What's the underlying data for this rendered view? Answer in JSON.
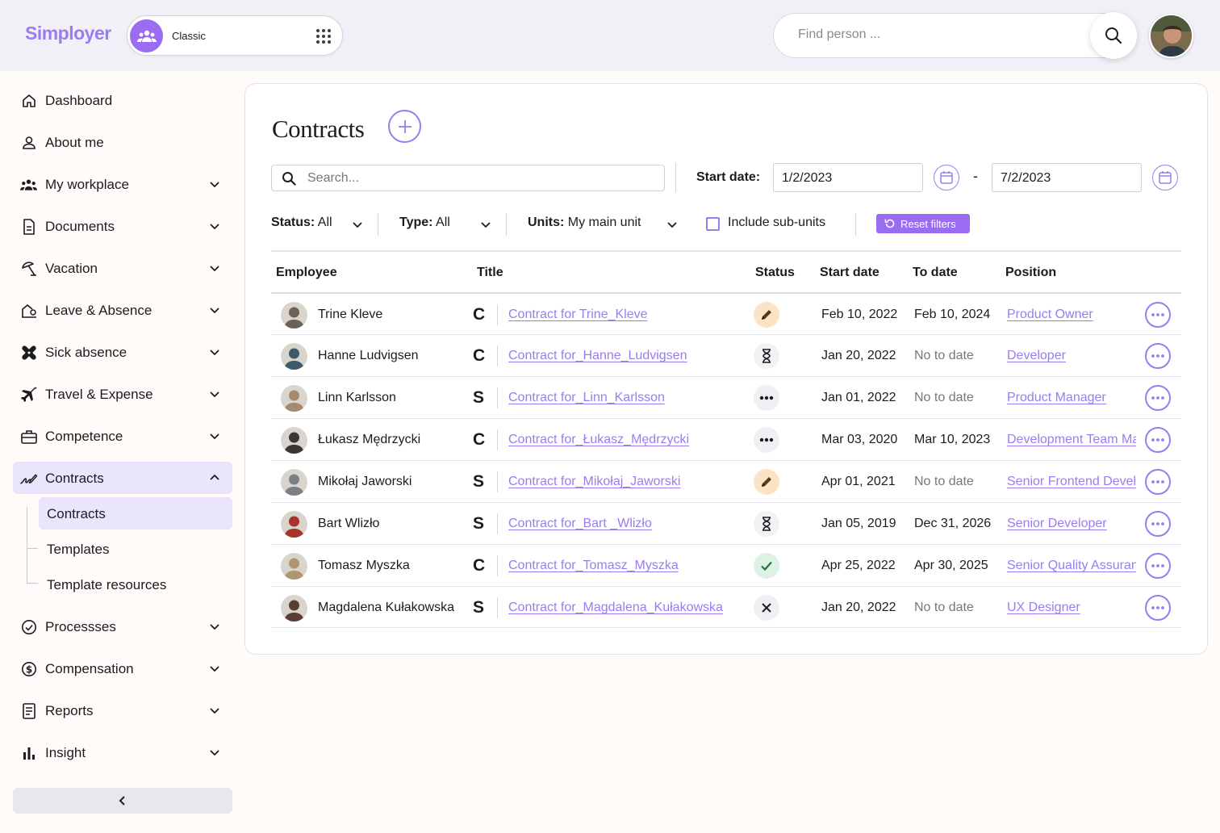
{
  "header": {
    "logo": "Simployer",
    "switcher_label": "Classic",
    "search_placeholder": "Find person ..."
  },
  "sidebar": {
    "items": [
      {
        "label": "Dashboard",
        "icon": "home-icon"
      },
      {
        "label": "About me",
        "icon": "person-icon"
      },
      {
        "label": "My workplace",
        "icon": "group-icon"
      },
      {
        "label": "Documents",
        "icon": "document-icon"
      },
      {
        "label": "Vacation",
        "icon": "beach-umbrella-icon"
      },
      {
        "label": "Leave & Absence",
        "icon": "leave-icon"
      },
      {
        "label": "Sick absence",
        "icon": "bandage-icon"
      },
      {
        "label": "Travel & Expense",
        "icon": "airplane-icon"
      },
      {
        "label": "Competence",
        "icon": "briefcase-icon"
      },
      {
        "label": "Contracts",
        "icon": "signature-icon"
      },
      {
        "label": "Processses",
        "icon": "check-circle-icon"
      },
      {
        "label": "Compensation",
        "icon": "dollar-circle-icon"
      },
      {
        "label": "Reports",
        "icon": "report-icon"
      },
      {
        "label": "Insight",
        "icon": "bar-chart-icon"
      }
    ],
    "contracts_sub": [
      "Contracts",
      "Templates",
      "Template resources"
    ]
  },
  "page": {
    "title": "Contracts",
    "search_placeholder": "Search...",
    "start_date_label": "Start date:",
    "date_from": "1/2/2023",
    "date_separator": "-",
    "date_to": "7/2/2023",
    "filters": {
      "status_label": "Status:",
      "status_value": "All",
      "type_label": "Type:",
      "type_value": "All",
      "units_label": "Units:",
      "units_value": "My main unit",
      "include_sub": "Include sub-units",
      "reset": "Reset filters"
    }
  },
  "table": {
    "columns": [
      "Employee",
      "Title",
      "Status",
      "Start date",
      "To date",
      "Position"
    ],
    "rows": [
      {
        "name": "Trine Kleve",
        "type": "C",
        "title": "Contract for Trine_Kleve",
        "status": "draft",
        "start": "Feb 10, 2022",
        "to": "Feb 10, 2024",
        "position": "Product Owner",
        "avatar_color": "#6b6158"
      },
      {
        "name": "Hanne Ludvigsen",
        "type": "C",
        "title": "Contract for_Hanne_Ludvigsen",
        "status": "pending",
        "start": "Jan 20, 2022",
        "to": "No to date",
        "position": "Developer",
        "avatar_color": "#3c5a6b"
      },
      {
        "name": "Linn Karlsson",
        "type": "S",
        "title": "Contract for_Linn_Karlsson",
        "status": "more",
        "start": "Jan 01, 2022",
        "to": "No to date",
        "position": "Product Manager",
        "avatar_color": "#a58a6e"
      },
      {
        "name": "Łukasz Mędrzycki",
        "type": "C",
        "title": "Contract for_Łukasz_Mędrzycki",
        "status": "more",
        "start": "Mar 03, 2020",
        "to": "Mar 10, 2023",
        "position": "Development Team Manager",
        "avatar_color": "#3a3634"
      },
      {
        "name": "Mikołaj Jaworski",
        "type": "S",
        "title": "Contract for_Mikołaj_Jaworski",
        "status": "draft",
        "start": "Apr 01, 2021",
        "to": "No to date",
        "position": "Senior Frontend Developer",
        "avatar_color": "#7b8088"
      },
      {
        "name": "Bart Wlizło",
        "type": "S",
        "title": "Contract for_Bart _Wlizło",
        "status": "pending",
        "start": "Jan 05, 2019",
        "to": "Dec 31, 2026",
        "position": "Senior Developer",
        "avatar_color": "#a8332a"
      },
      {
        "name": "Tomasz Myszka",
        "type": "C",
        "title": "Contract for_Tomasz_Myszka",
        "status": "ok",
        "start": "Apr 25, 2022",
        "to": "Apr 30, 2025",
        "position": "Senior Quality Assurance",
        "avatar_color": "#b09670"
      },
      {
        "name": "Magdalena Kułakowska",
        "type": "S",
        "title": "Contract for_Magdalena_Kułakowska",
        "status": "rejected",
        "start": "Jan 20, 2022",
        "to": "No to date",
        "position": "UX Designer",
        "avatar_color": "#5a3e33"
      }
    ]
  },
  "colors": {
    "accent": "#9a7cf0",
    "accent_strong": "#9a6cf2",
    "nav_active_bg": "#ebe4fd"
  }
}
